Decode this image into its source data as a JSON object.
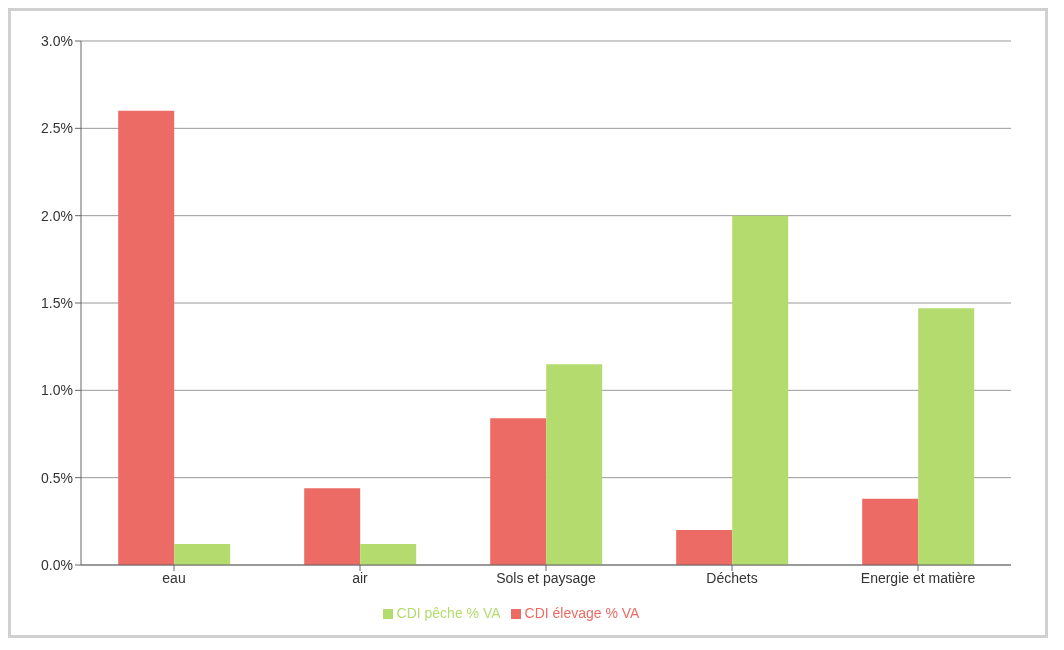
{
  "chart_data": {
    "type": "bar",
    "categories": [
      "eau",
      "air",
      "Sols et paysage",
      "Déchets",
      "Energie et matière"
    ],
    "series": [
      {
        "name": "CDI élevage % VA",
        "color": "#ec6b64",
        "values": [
          2.6,
          0.44,
          0.84,
          0.2,
          0.38
        ]
      },
      {
        "name": "CDI pêche % VA",
        "color": "#b4db6e",
        "values": [
          0.12,
          0.12,
          1.15,
          2.0,
          1.47
        ]
      }
    ],
    "ylim": [
      0,
      3
    ],
    "yticks": [
      {
        "value": 0,
        "label": "0.0%"
      },
      {
        "value": 0.5,
        "label": "0.5%"
      },
      {
        "value": 1,
        "label": "1.0%"
      },
      {
        "value": 1.5,
        "label": "1.5%"
      },
      {
        "value": 2,
        "label": "2.0%"
      },
      {
        "value": 2.5,
        "label": "2.5%"
      },
      {
        "value": 3,
        "label": "3.0%"
      }
    ],
    "grid": "y",
    "legend": "bottom"
  }
}
